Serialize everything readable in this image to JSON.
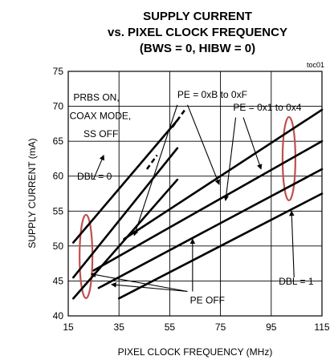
{
  "chart_data": {
    "type": "line",
    "title": [
      "SUPPLY CURRENT",
      "vs. PIXEL CLOCK FREQUENCY",
      "(BWS = 0, HIBW = 0)"
    ],
    "figure_id": "toc01",
    "xlabel": "PIXEL CLOCK FREQUENCY (MHz)",
    "ylabel": "SUPPLY CURRENT (mA)",
    "xlim": [
      15,
      115
    ],
    "ylim": [
      40,
      75
    ],
    "xticks": [
      15,
      35,
      55,
      75,
      95,
      115
    ],
    "yticks": [
      40,
      45,
      50,
      55,
      60,
      65,
      70,
      75
    ],
    "grid": true,
    "series": [
      {
        "x": [
          17,
          58
        ],
        "y": [
          50.5,
          68.0
        ]
      },
      {
        "x": [
          17,
          58
        ],
        "y": [
          45.5,
          64.0
        ]
      },
      {
        "x": [
          17,
          58
        ],
        "y": [
          42.5,
          59.5
        ]
      },
      {
        "x": [
          37,
          115
        ],
        "y": [
          51.0,
          69.5
        ]
      },
      {
        "x": [
          25,
          115
        ],
        "y": [
          46.5,
          65.0
        ]
      },
      {
        "x": [
          27,
          115
        ],
        "y": [
          44.0,
          61.0
        ]
      },
      {
        "x": [
          35,
          115
        ],
        "y": [
          42.5,
          57.5
        ]
      }
    ],
    "annotations": [
      {
        "text": "PRBS ON,",
        "x": 17,
        "y": 70.8
      },
      {
        "text": "COAX MODE,",
        "x": 15.5,
        "y": 68.2
      },
      {
        "text": "SS OFF",
        "x": 21,
        "y": 65.6
      },
      {
        "text": "PE = 0xB to 0xF",
        "x": 58,
        "y": 71.2
      },
      {
        "text": "PE = 0x1 to 0x4",
        "x": 80,
        "y": 69.4
      },
      {
        "text": "DBL = 0",
        "x": 18.5,
        "y": 59.5
      },
      {
        "text": "DBL = 1",
        "x": 98,
        "y": 44.5
      },
      {
        "text": "PE OFF",
        "x": 63,
        "y": 41.8
      }
    ]
  }
}
